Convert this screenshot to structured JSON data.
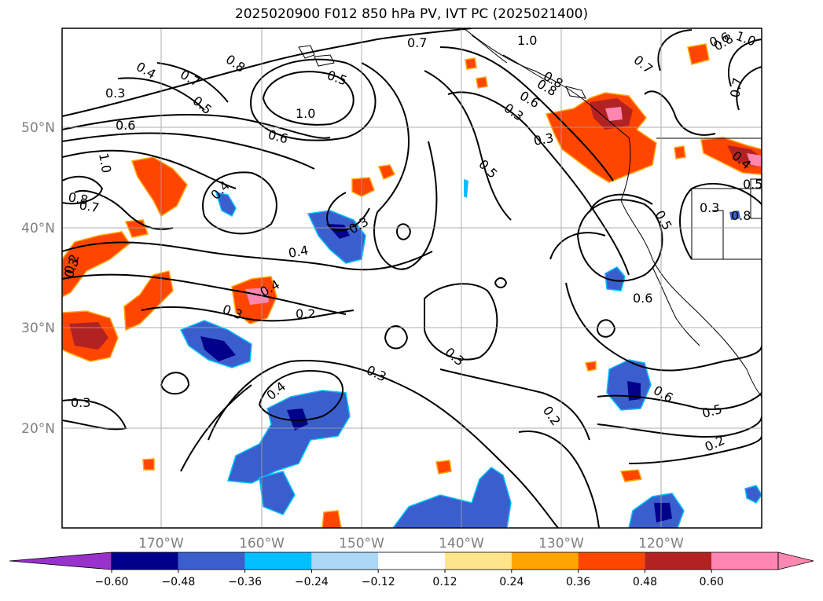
{
  "title": "2025020900 F012 850 hPa PV, IVT PC (2025021400)",
  "map": {
    "lon_labels": [
      "170°W",
      "160°W",
      "150°W",
      "140°W",
      "130°W",
      "120°W"
    ],
    "lat_labels": [
      "50°N",
      "40°N",
      "30°N",
      "20°N"
    ],
    "contour_labels": [
      "0.7",
      "1.0",
      "0.8",
      "0.4",
      "0.7",
      "0.5",
      "0.5",
      "0.3",
      "0.6",
      "1.0",
      "0.6",
      "0.7",
      "0.8",
      "1.0",
      "0.4",
      "0.5",
      "0.3",
      "0.3",
      "0.4",
      "0.3",
      "0.2",
      "0.4",
      "0.3",
      "0.2",
      "0.3",
      "0.3",
      "0.4",
      "0.3",
      "0.2",
      "0.6",
      "0.5",
      "0.3",
      "0.7",
      "0.8",
      "0.6",
      "0.5",
      "0.2",
      "0.3",
      "0.5",
      "0.8",
      "0.6",
      "0.4",
      "0.7",
      "0.6",
      "1.0",
      "0.8",
      "0.8"
    ]
  },
  "colorbar": {
    "ticks": [
      "−0.60",
      "−0.48",
      "−0.36",
      "−0.24",
      "−0.12",
      "0.12",
      "0.24",
      "0.36",
      "0.48",
      "0.60"
    ],
    "colors": [
      "#9932cc",
      "#00008b",
      "#3a5fcd",
      "#00bfff",
      "#add8f5",
      "#ffffff",
      "#fde68a",
      "#ffa500",
      "#ff4500",
      "#b22222",
      "#ff86b0",
      "#ff86b0"
    ],
    "extend": "both"
  },
  "colors": {
    "contour": "#000000",
    "grid": "#a0a0a0",
    "coast": "#000000"
  }
}
